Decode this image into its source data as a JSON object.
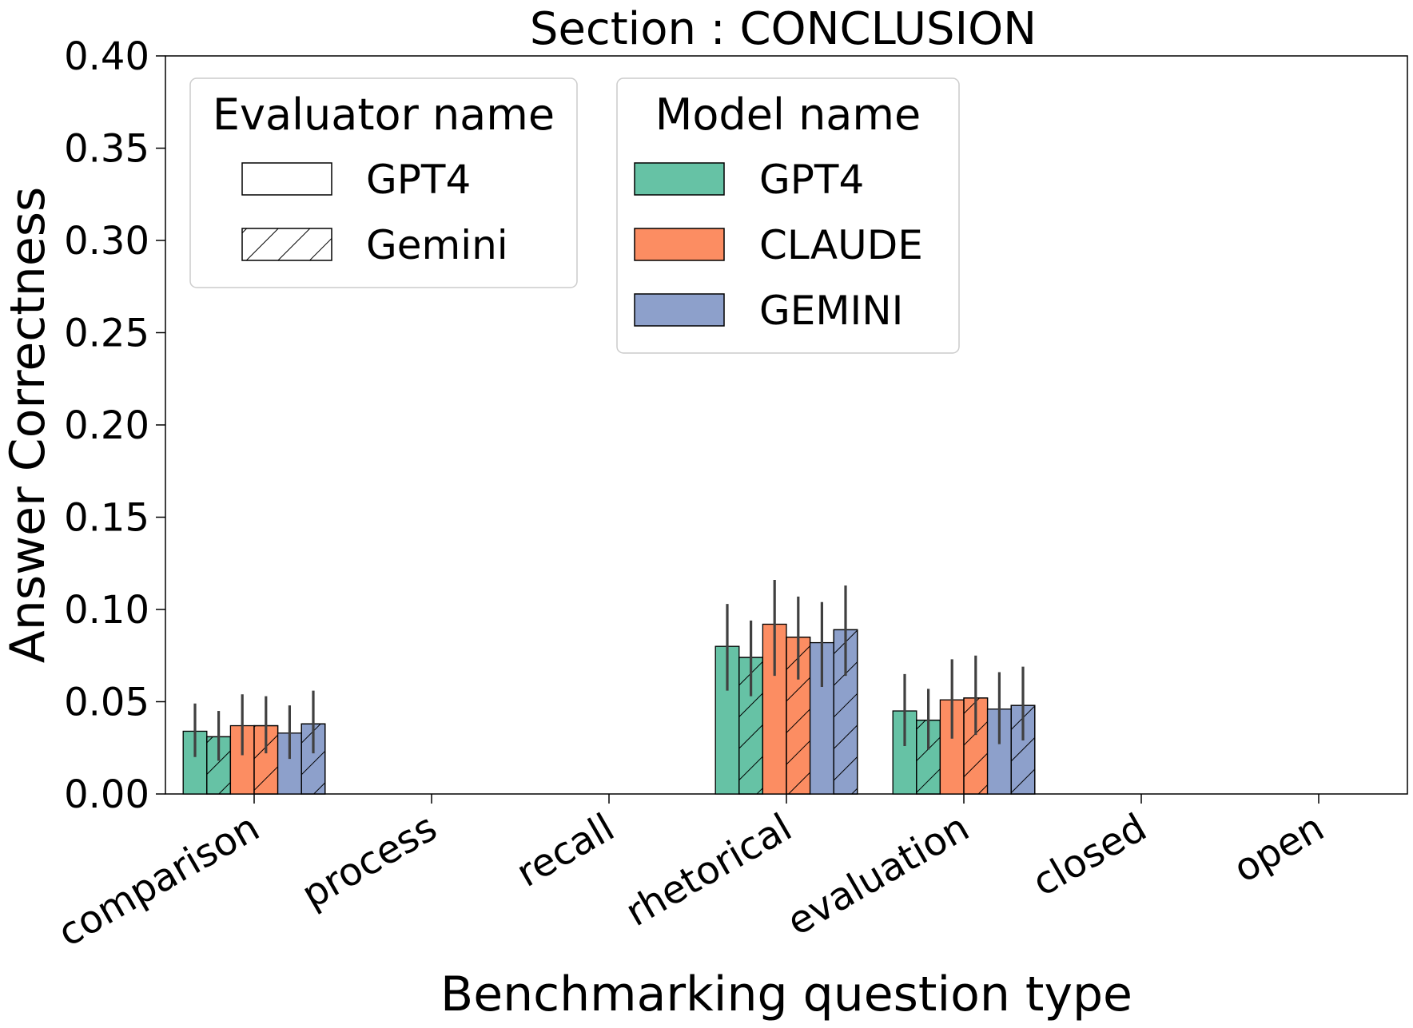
{
  "chart_data": {
    "type": "bar",
    "title": "Section : CONCLUSION",
    "xlabel": "Benchmarking question type",
    "ylabel": "Answer Correctness",
    "ylim": [
      0,
      0.4
    ],
    "yticks": [
      "0.00",
      "0.05",
      "0.10",
      "0.15",
      "0.20",
      "0.25",
      "0.30",
      "0.35",
      "0.40"
    ],
    "categories": [
      "comparison",
      "process",
      "recall",
      "rhetorical",
      "evaluation",
      "closed",
      "open"
    ],
    "series": [
      {
        "name": "GPT4 / GPT4",
        "model": "GPT4",
        "evaluator": "GPT4",
        "color": "#66c2a5",
        "hatch": false,
        "values": [
          0.034,
          0,
          0,
          0.08,
          0.045,
          0,
          0
        ],
        "err": [
          [
            0.02,
            0.049
          ],
          null,
          null,
          [
            0.056,
            0.103
          ],
          [
            0.026,
            0.065
          ],
          null,
          null
        ]
      },
      {
        "name": "GPT4 / Gemini",
        "model": "GPT4",
        "evaluator": "Gemini",
        "color": "#66c2a5",
        "hatch": true,
        "values": [
          0.031,
          0,
          0,
          0.074,
          0.04,
          0,
          0
        ],
        "err": [
          [
            0.018,
            0.045
          ],
          null,
          null,
          [
            0.053,
            0.094
          ],
          [
            0.024,
            0.057
          ],
          null,
          null
        ]
      },
      {
        "name": "CLAUDE / GPT4",
        "model": "CLAUDE",
        "evaluator": "GPT4",
        "color": "#fc8d62",
        "hatch": false,
        "values": [
          0.037,
          0,
          0,
          0.092,
          0.051,
          0,
          0
        ],
        "err": [
          [
            0.021,
            0.054
          ],
          null,
          null,
          [
            0.064,
            0.116
          ],
          [
            0.03,
            0.073
          ],
          null,
          null
        ]
      },
      {
        "name": "CLAUDE / Gemini",
        "model": "CLAUDE",
        "evaluator": "Gemini",
        "color": "#fc8d62",
        "hatch": true,
        "values": [
          0.037,
          0,
          0,
          0.085,
          0.052,
          0,
          0
        ],
        "err": [
          [
            0.022,
            0.053
          ],
          null,
          null,
          [
            0.062,
            0.107
          ],
          [
            0.032,
            0.075
          ],
          null,
          null
        ]
      },
      {
        "name": "GEMINI / GPT4",
        "model": "GEMINI",
        "evaluator": "GPT4",
        "color": "#8da0cb",
        "hatch": false,
        "values": [
          0.033,
          0,
          0,
          0.082,
          0.046,
          0,
          0
        ],
        "err": [
          [
            0.019,
            0.048
          ],
          null,
          null,
          [
            0.058,
            0.104
          ],
          [
            0.027,
            0.066
          ],
          null,
          null
        ]
      },
      {
        "name": "GEMINI / Gemini",
        "model": "GEMINI",
        "evaluator": "Gemini",
        "color": "#8da0cb",
        "hatch": true,
        "values": [
          0.038,
          0,
          0,
          0.089,
          0.048,
          0,
          0
        ],
        "err": [
          [
            0.022,
            0.056
          ],
          null,
          null,
          [
            0.064,
            0.113
          ],
          [
            0.029,
            0.069
          ],
          null,
          null
        ]
      }
    ],
    "legend_evaluator": {
      "title": "Evaluator name",
      "entries": [
        {
          "label": "GPT4",
          "hatch": false
        },
        {
          "label": "Gemini",
          "hatch": true
        }
      ],
      "placement": "top-left"
    },
    "legend_model": {
      "title": "Model name",
      "entries": [
        {
          "label": "GPT4",
          "color": "#66c2a5"
        },
        {
          "label": "CLAUDE",
          "color": "#fc8d62"
        },
        {
          "label": "GEMINI",
          "color": "#8da0cb"
        }
      ],
      "placement": "top-center"
    },
    "grid": false
  }
}
